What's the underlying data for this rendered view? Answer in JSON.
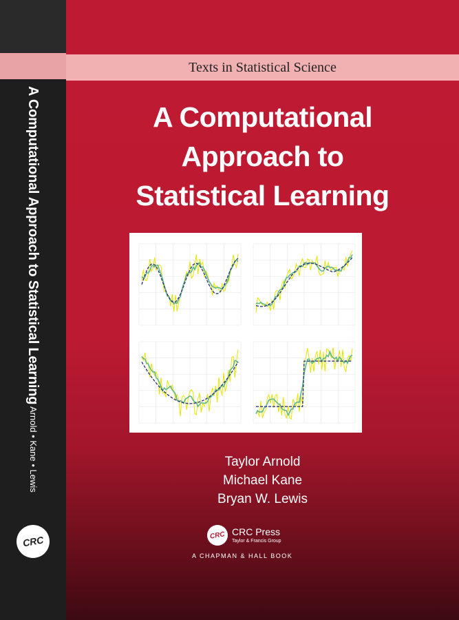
{
  "spine": {
    "title": "A Computational Approach to Statistical Learning",
    "authors": "Arnold • Kane • Lewis",
    "logo_text": "CRC"
  },
  "cover": {
    "series": "Texts in Statistical Science",
    "title_lines": [
      "A Computational",
      "Approach to",
      "Statistical Learning"
    ],
    "authors": [
      "Taylor Arnold",
      "Michael Kane",
      "Bryan W. Lewis"
    ],
    "publisher": {
      "logo_text": "CRC",
      "name": "CRC Press",
      "group": "Taylor & Francis Group",
      "imprint": "A CHAPMAN & HALL BOOK"
    }
  },
  "colors": {
    "cover_red": "#bf1a33",
    "series_band": "#f1b0b2",
    "spine": "#1e1e1e",
    "raw_series": "#e6e600",
    "smooth_series": "#5fb88a",
    "fit_series": "#2d3a7a"
  }
}
